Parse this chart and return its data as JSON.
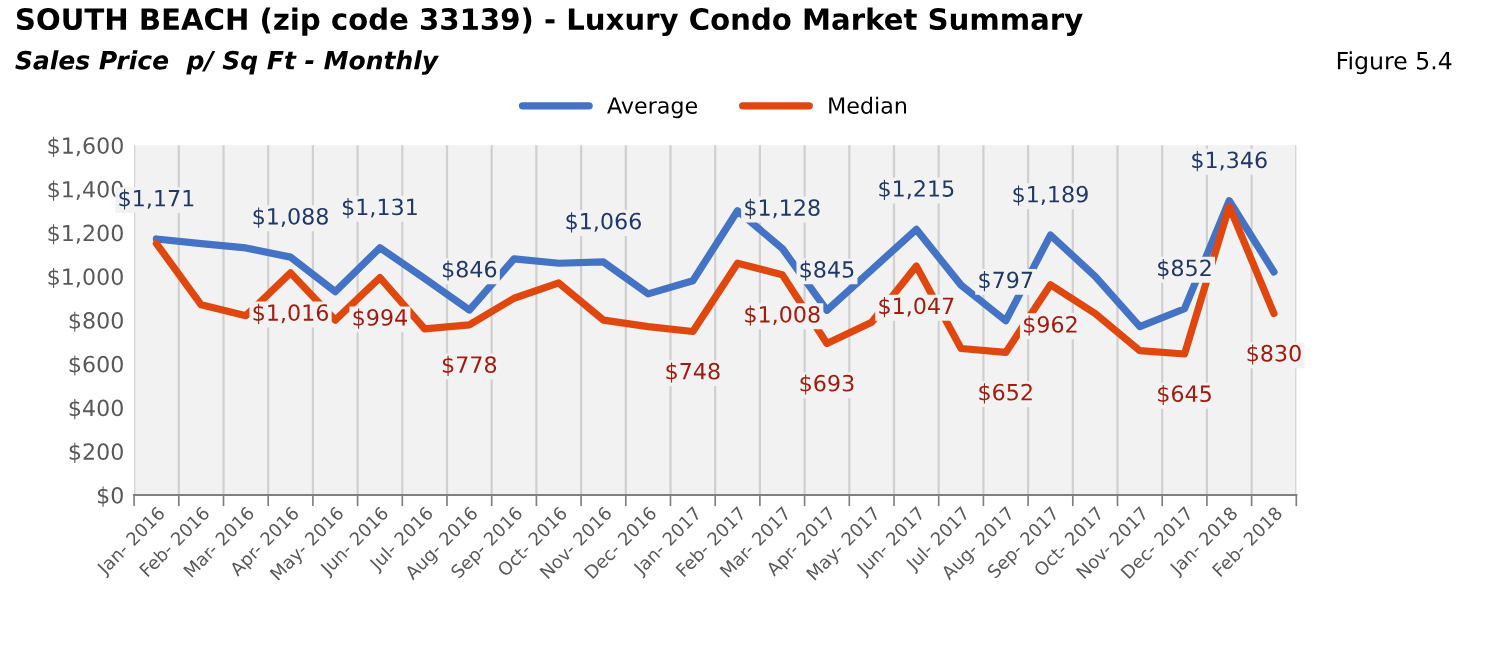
{
  "chart_data": {
    "type": "line",
    "title": "SOUTH BEACH (zip code 33139) - Luxury Condo Market Summary",
    "subtitle": "Sales Price  p/ Sq Ft - Monthly",
    "annotations": [
      "Figure 5.4"
    ],
    "categories": [
      "Jan- 2016",
      "Feb- 2016",
      "Mar- 2016",
      "Apr- 2016",
      "May- 2016",
      "Jun- 2016",
      "Jul- 2016",
      "Aug- 2016",
      "Sep- 2016",
      "Oct- 2016",
      "Nov- 2016",
      "Dec- 2016",
      "Jan- 2017",
      "Feb- 2017",
      "Mar- 2017",
      "Apr- 2017",
      "May- 2017",
      "Jun- 2017",
      "Jul- 2017",
      "Aug- 2017",
      "Sep- 2017",
      "Oct- 2017",
      "Nov- 2017",
      "Dec- 2017",
      "Jan- 2018",
      "Feb- 2018"
    ],
    "series": [
      {
        "name": "Average",
        "color": "#4472c4",
        "values": [
          1171,
          1150,
          1130,
          1088,
          930,
          1131,
          990,
          846,
          1080,
          1060,
          1066,
          920,
          980,
          1300,
          1128,
          845,
          1030,
          1215,
          960,
          797,
          1189,
          1000,
          770,
          852,
          1346,
          1020
        ],
        "value_labels": [
          "$1,171",
          null,
          null,
          "$1,088",
          null,
          "$1,131",
          null,
          "$846",
          null,
          null,
          "$1,066",
          null,
          null,
          null,
          "$1,128",
          "$845",
          null,
          "$1,215",
          null,
          "$797",
          "$1,189",
          null,
          null,
          "$852",
          "$1,346",
          null
        ]
      },
      {
        "name": "Median",
        "color": "#e0470f",
        "values": [
          1150,
          870,
          820,
          1016,
          800,
          994,
          760,
          778,
          900,
          970,
          800,
          770,
          748,
          1060,
          1008,
          693,
          790,
          1047,
          670,
          652,
          962,
          830,
          660,
          645,
          1320,
          830
        ],
        "value_labels": [
          null,
          null,
          null,
          "$1,016",
          null,
          "$994",
          null,
          "$778",
          null,
          null,
          null,
          null,
          "$748",
          null,
          "$1,008",
          "$693",
          null,
          "$1,047",
          null,
          "$652",
          "$962",
          null,
          null,
          "$645",
          null,
          "$830"
        ]
      }
    ],
    "ylim": [
      0,
      1600
    ],
    "yticks": [
      {
        "value": 0,
        "label": "$0"
      },
      {
        "value": 200,
        "label": "$200"
      },
      {
        "value": 400,
        "label": "$400"
      },
      {
        "value": 600,
        "label": "$600"
      },
      {
        "value": 800,
        "label": "$800"
      },
      {
        "value": 1000,
        "label": "$1,000"
      },
      {
        "value": 1200,
        "label": "$1,200"
      },
      {
        "value": 1400,
        "label": "$1,400"
      },
      {
        "value": 1600,
        "label": "$1,600"
      }
    ],
    "grid": "x",
    "legend": "top",
    "marker": "none",
    "line_style": "solid"
  }
}
